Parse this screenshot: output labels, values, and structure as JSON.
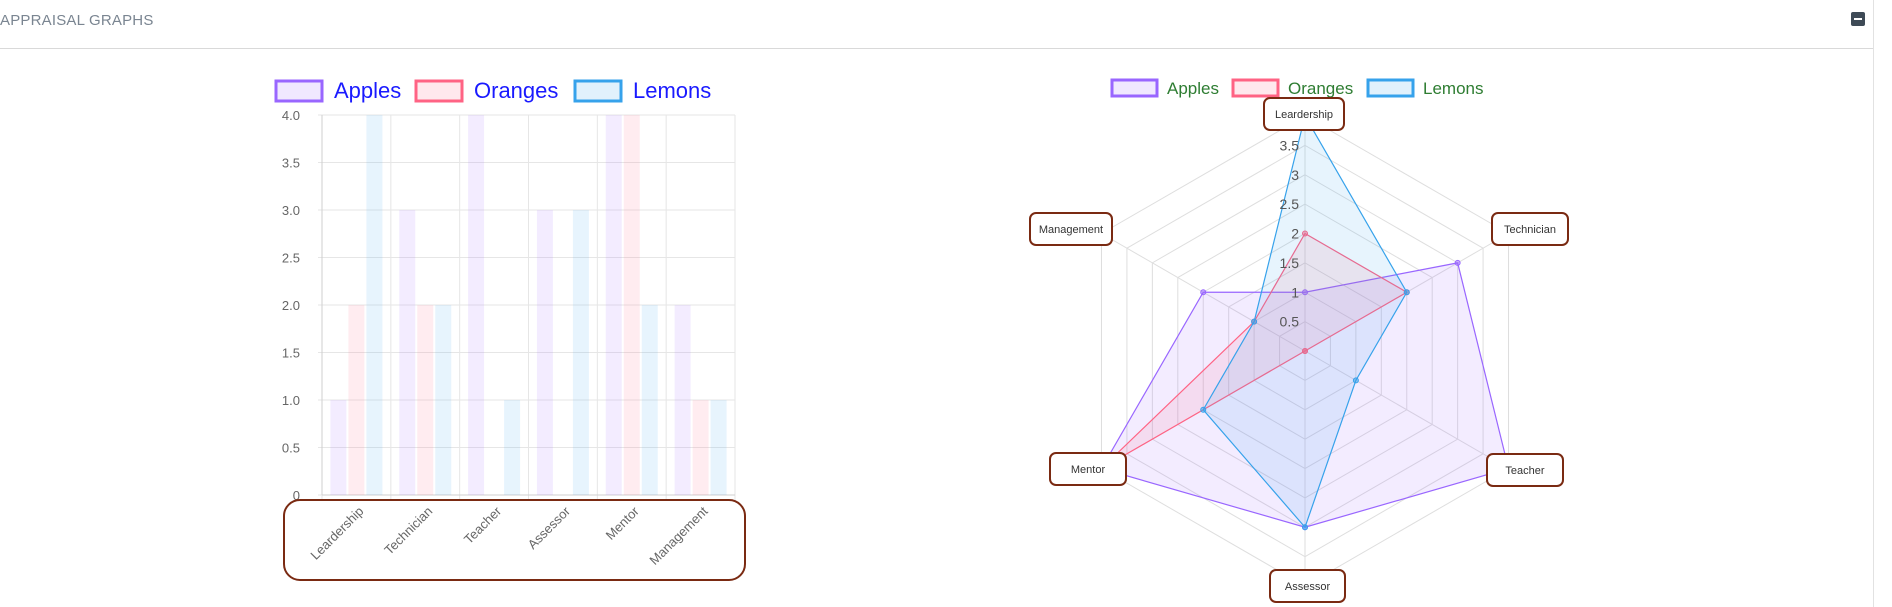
{
  "panel": {
    "title": "APPRAISAL GRAPHS",
    "collapse_icon": "minus-square-icon"
  },
  "chart_data": [
    {
      "type": "bar",
      "categories": [
        "Leardership",
        "Technician",
        "Teacher",
        "Assessor",
        "Mentor",
        "Management"
      ],
      "series": [
        {
          "name": "Apples",
          "values": [
            1,
            3,
            4,
            3,
            4,
            2
          ],
          "color": "#9966ff"
        },
        {
          "name": "Oranges",
          "values": [
            2,
            2,
            0,
            0,
            4,
            1
          ],
          "color": "#ff6384"
        },
        {
          "name": "Lemons",
          "values": [
            4,
            2,
            1,
            3,
            2,
            1
          ],
          "color": "#36a2eb"
        }
      ],
      "ylim": [
        0,
        4
      ],
      "yticks": [
        "0",
        "0.5",
        "1.0",
        "1.5",
        "2.0",
        "2.5",
        "3.0",
        "3.5",
        "4.0"
      ],
      "grid": true,
      "legend": "top",
      "legend_text_color": "#1a1aff"
    },
    {
      "type": "radar",
      "categories": [
        "Leardership",
        "Technician",
        "Teacher",
        "Assessor",
        "Mentor",
        "Management"
      ],
      "series": [
        {
          "name": "Apples",
          "values": [
            1,
            3,
            4,
            3,
            4,
            2
          ],
          "color": "#9966ff"
        },
        {
          "name": "Oranges",
          "values": [
            2,
            2,
            0,
            0,
            4,
            1
          ],
          "color": "#ff6384"
        },
        {
          "name": "Lemons",
          "values": [
            4,
            2,
            1,
            3,
            2,
            1
          ],
          "color": "#36a2eb"
        }
      ],
      "rlim": [
        0,
        4
      ],
      "rticks": [
        "0.5",
        "1",
        "1.5",
        "2",
        "2.5",
        "3",
        "3.5",
        "4"
      ],
      "grid": true,
      "legend": "top",
      "legend_text_color": "#2e7d32"
    }
  ],
  "highlight_color": "#7a2a12"
}
